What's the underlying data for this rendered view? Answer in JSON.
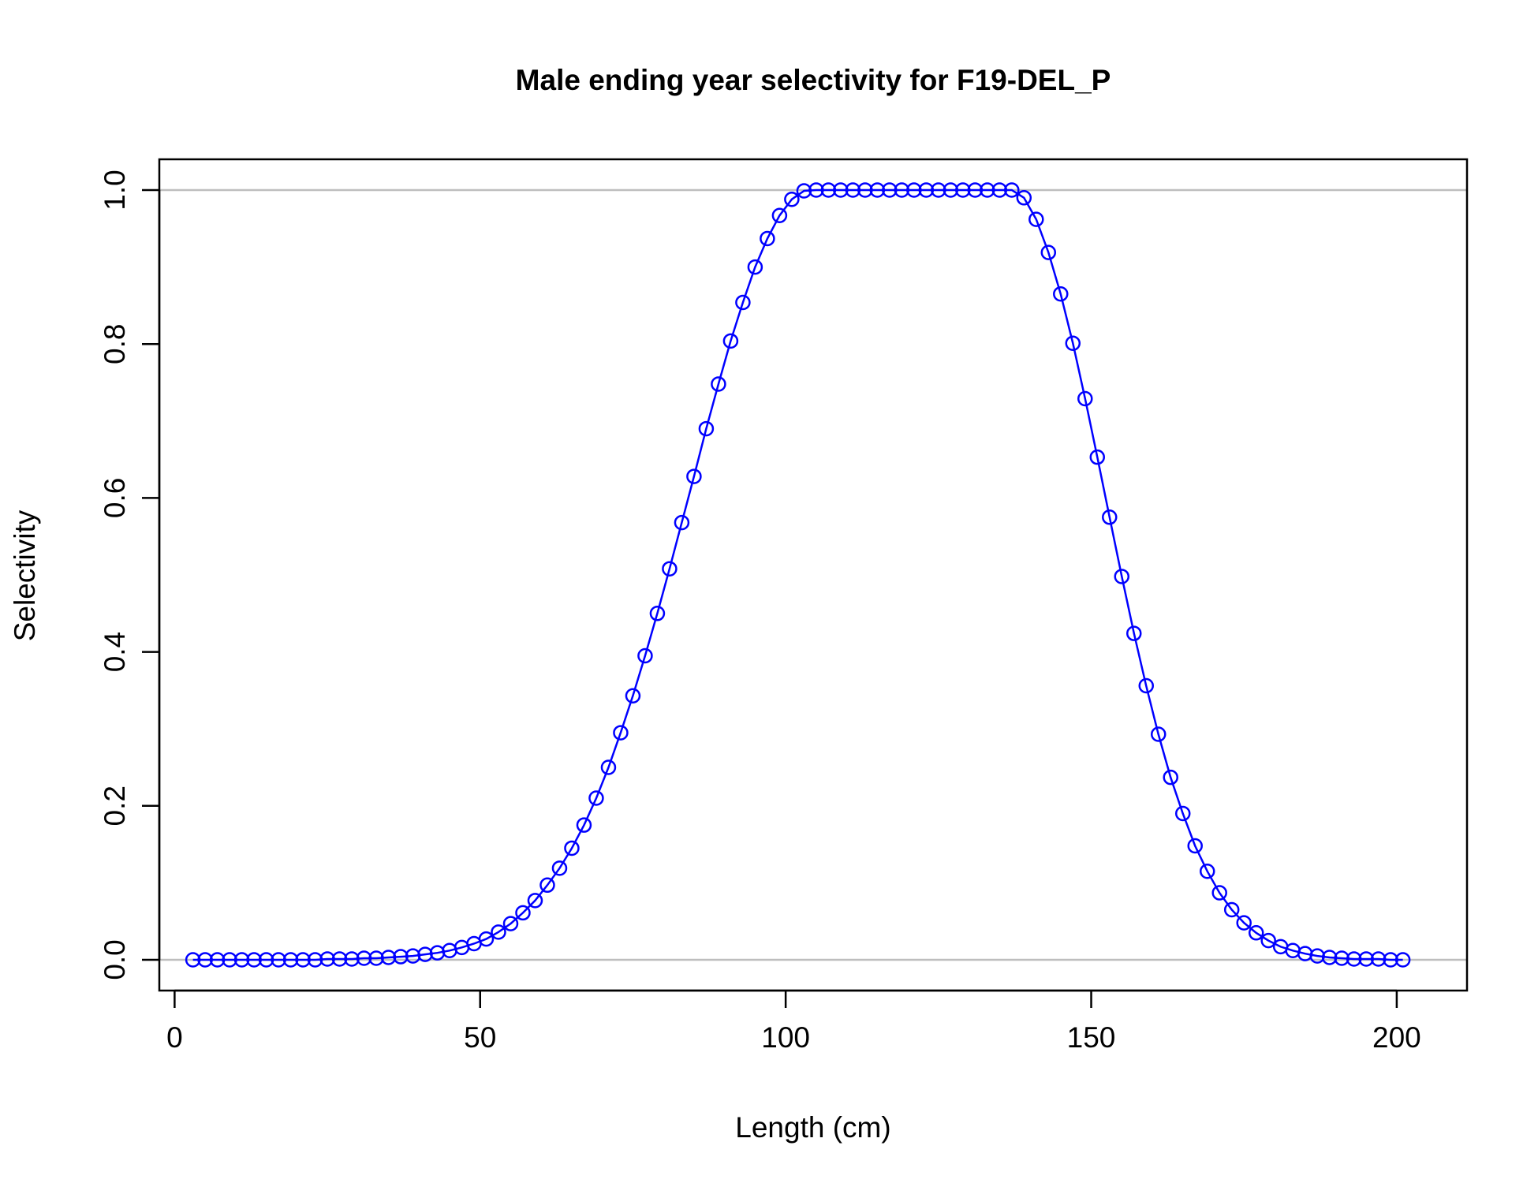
{
  "chart_data": {
    "type": "line",
    "title": "Male ending year selectivity for F19-DEL_P",
    "xlabel": "Length (cm)",
    "ylabel": "Selectivity",
    "xlim": [
      -2.5,
      211.5
    ],
    "ylim": [
      -0.04,
      1.04
    ],
    "x_ticks": [
      0,
      50,
      100,
      150,
      200
    ],
    "y_ticks": [
      0.0,
      0.2,
      0.4,
      0.6,
      0.8,
      1.0
    ],
    "x_tick_labels": [
      "0",
      "50",
      "100",
      "150",
      "200"
    ],
    "y_tick_labels": [
      "0.0",
      "0.2",
      "0.4",
      "0.6",
      "0.8",
      "1.0"
    ],
    "reference_lines_y": [
      0,
      1
    ],
    "reference_line_color": "#bebebe",
    "series_color": "#0000ff",
    "markers": "open-circle",
    "series": [
      {
        "x": [
          3,
          5,
          7,
          9,
          11,
          13,
          15,
          17,
          19,
          21,
          23,
          25,
          27,
          29,
          31,
          33,
          35,
          37,
          39,
          41,
          43,
          45,
          47,
          49,
          51,
          53,
          55,
          57,
          59,
          61,
          63,
          65,
          67,
          69,
          71,
          73,
          75,
          77,
          79,
          81,
          83,
          85,
          87,
          89,
          91,
          93,
          95,
          97,
          99,
          101,
          103,
          105,
          107,
          109,
          111,
          113,
          115,
          117,
          119,
          121,
          123,
          125,
          127,
          129,
          131,
          133,
          135,
          137,
          139,
          141,
          143,
          145,
          147,
          149,
          151,
          153,
          155,
          157,
          159,
          161,
          163,
          165,
          167,
          169,
          171,
          173,
          175,
          177,
          179,
          181,
          183,
          185,
          187,
          189,
          191,
          193,
          195,
          197,
          199,
          201
        ],
        "values": [
          0,
          0,
          0,
          0,
          0,
          0,
          0,
          0,
          0,
          0,
          0,
          0.001,
          0.001,
          0.001,
          0.002,
          0.002,
          0.003,
          0.004,
          0.005,
          0.007,
          0.009,
          0.012,
          0.016,
          0.021,
          0.027,
          0.036,
          0.047,
          0.061,
          0.077,
          0.097,
          0.119,
          0.145,
          0.175,
          0.21,
          0.25,
          0.295,
          0.343,
          0.395,
          0.45,
          0.508,
          0.568,
          0.628,
          0.69,
          0.748,
          0.804,
          0.854,
          0.9,
          0.937,
          0.967,
          0.988,
          0.999,
          1,
          1,
          1,
          1,
          1,
          1,
          1,
          1,
          1,
          1,
          1,
          1,
          1,
          1,
          1,
          1,
          1,
          0.99,
          0.962,
          0.919,
          0.865,
          0.801,
          0.729,
          0.653,
          0.575,
          0.498,
          0.424,
          0.356,
          0.293,
          0.237,
          0.19,
          0.148,
          0.115,
          0.087,
          0.065,
          0.048,
          0.035,
          0.025,
          0.017,
          0.012,
          0.008,
          0.005,
          0.003,
          0.002,
          0.001,
          0.001,
          0.001,
          0,
          0
        ]
      }
    ]
  }
}
